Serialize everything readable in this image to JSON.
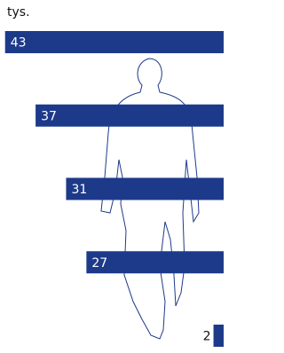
{
  "chart_data": {
    "type": "bar",
    "orientation": "horizontal-right-anchored",
    "unit_label": "tys.",
    "values": [
      43,
      37,
      31,
      27,
      2
    ],
    "color": "#1d3a8a",
    "xlim": [
      0,
      44
    ]
  }
}
